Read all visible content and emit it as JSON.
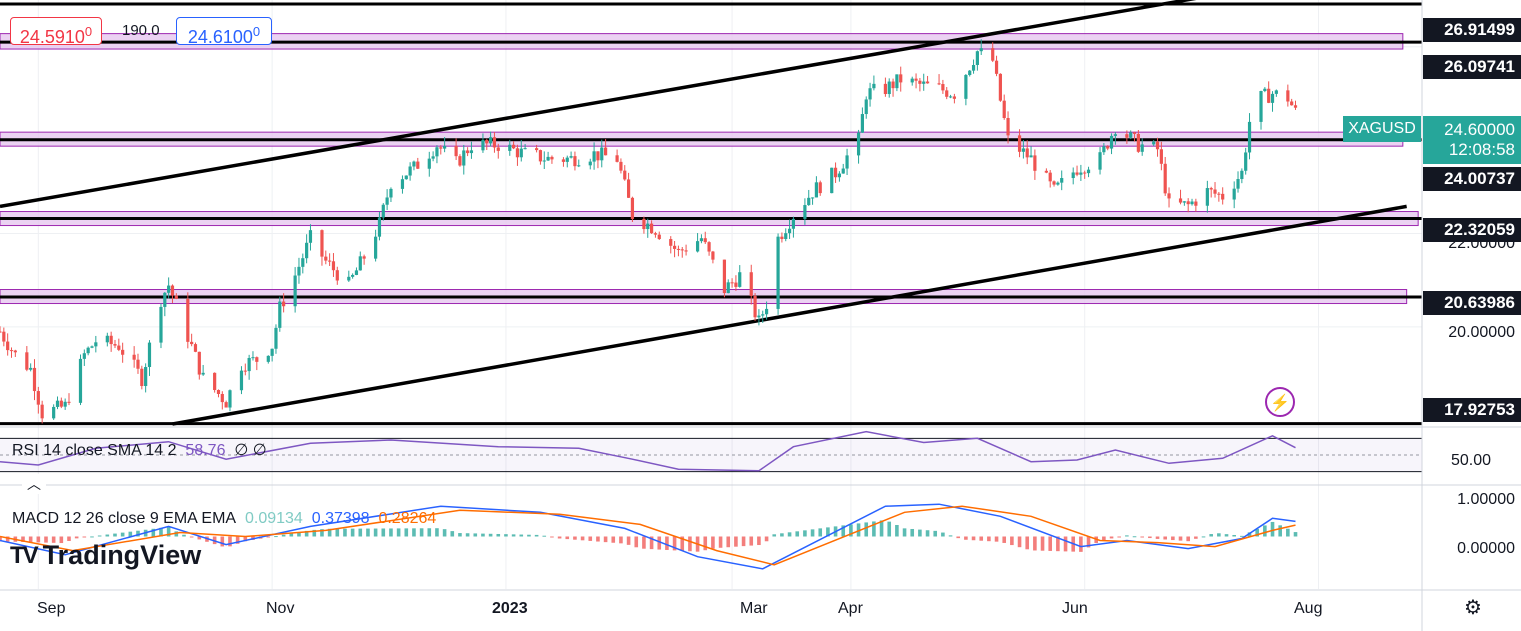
{
  "ticket": {
    "bid": "24.5910",
    "bid_sup": "0",
    "spread": "190.0",
    "ask": "24.6100",
    "ask_sup": "0"
  },
  "symbol": "XAGUSD",
  "current_price": "24.60000",
  "countdown": "12:08:58",
  "brand": {
    "name": "TradingView",
    "mark": "TV"
  },
  "icons": {
    "settings": "gear-icon",
    "alert": "lightning-icon",
    "collapse": "chevron-up-icon"
  },
  "colors": {
    "up": "#26a69a",
    "down": "#ef5350",
    "zone": "#e6c7ef",
    "rsi": "#7e57c2",
    "macd": "#2962ff",
    "signal": "#ff6d00"
  },
  "rsi": {
    "label": "RSI 14 close SMA 14 2",
    "value": "58.76",
    "extra": "∅ ∅",
    "level": "50.00"
  },
  "macd": {
    "label": "MACD 12 26 close 9 EMA EMA",
    "hist": "0.09134",
    "macd": "0.37398",
    "signal": "0.28264",
    "tick_top": "1.00000",
    "tick_zero": "0.00000"
  },
  "axis": {
    "time_labels": [
      "Sep",
      "Nov",
      "2023",
      "Mar",
      "Apr",
      "Jun",
      "Aug"
    ],
    "price_ticks": [
      "22.00000",
      "20.00000"
    ],
    "level_tags": [
      "26.91499",
      "26.09741",
      "24.00737",
      "22.32059",
      "20.63986",
      "17.92753"
    ]
  },
  "chart_data": {
    "type": "candlestick",
    "symbol": "XAGUSD",
    "x_range": [
      "2022-08-22",
      "2023-08-28"
    ],
    "y_range": [
      17.92,
      27.0
    ],
    "horizontal_levels": [
      26.91499,
      26.09741,
      24.00737,
      22.32059,
      20.63986,
      17.92753
    ],
    "zones": [
      {
        "level": 26.09741,
        "low": 25.95,
        "high": 26.28
      },
      {
        "level": 24.00737,
        "low": 23.87,
        "high": 24.17
      },
      {
        "level": 22.32059,
        "low": 22.17,
        "high": 22.47
      },
      {
        "level": 20.63986,
        "low": 20.5,
        "high": 20.8
      }
    ],
    "channel": [
      {
        "x": [
          "2022-08-22",
          "2023-07-01"
        ],
        "y": [
          22.58,
          27.05
        ]
      },
      {
        "x": [
          "2022-10-06",
          "2023-08-24"
        ],
        "y": [
          17.92,
          22.58
        ]
      }
    ],
    "close_path": [
      {
        "x": "2022-08-22",
        "y": 19.9
      },
      {
        "x": "2022-08-26",
        "y": 19.4
      },
      {
        "x": "2022-08-30",
        "y": 19.1
      },
      {
        "x": "2022-09-02",
        "y": 18.15
      },
      {
        "x": "2022-09-08",
        "y": 18.3
      },
      {
        "x": "2022-09-13",
        "y": 19.4
      },
      {
        "x": "2022-09-16",
        "y": 19.7
      },
      {
        "x": "2022-09-22",
        "y": 19.6
      },
      {
        "x": "2022-09-28",
        "y": 18.9
      },
      {
        "x": "2022-10-03",
        "y": 20.6
      },
      {
        "x": "2022-10-05",
        "y": 20.9
      },
      {
        "x": "2022-10-10",
        "y": 19.8
      },
      {
        "x": "2022-10-14",
        "y": 18.9
      },
      {
        "x": "2022-10-20",
        "y": 18.4
      },
      {
        "x": "2022-10-24",
        "y": 19.2
      },
      {
        "x": "2022-10-28",
        "y": 19.3
      },
      {
        "x": "2022-11-01",
        "y": 19.6
      },
      {
        "x": "2022-11-03",
        "y": 20.4
      },
      {
        "x": "2022-11-07",
        "y": 21.1
      },
      {
        "x": "2022-11-11",
        "y": 21.9
      },
      {
        "x": "2022-11-15",
        "y": 21.4
      },
      {
        "x": "2022-11-21",
        "y": 20.9
      },
      {
        "x": "2022-11-25",
        "y": 21.5
      },
      {
        "x": "2022-11-29",
        "y": 22.2
      },
      {
        "x": "2022-12-02",
        "y": 23.1
      },
      {
        "x": "2022-12-08",
        "y": 23.4
      },
      {
        "x": "2022-12-14",
        "y": 23.9
      },
      {
        "x": "2022-12-19",
        "y": 23.5
      },
      {
        "x": "2022-12-23",
        "y": 23.9
      },
      {
        "x": "2022-12-30",
        "y": 23.9
      },
      {
        "x": "2023-01-06",
        "y": 23.7
      },
      {
        "x": "2023-01-12",
        "y": 23.6
      },
      {
        "x": "2023-01-18",
        "y": 23.6
      },
      {
        "x": "2023-01-24",
        "y": 23.7
      },
      {
        "x": "2023-01-30",
        "y": 23.6
      },
      {
        "x": "2023-02-03",
        "y": 22.4
      },
      {
        "x": "2023-02-09",
        "y": 22.1
      },
      {
        "x": "2023-02-15",
        "y": 21.6
      },
      {
        "x": "2023-02-21",
        "y": 21.9
      },
      {
        "x": "2023-02-27",
        "y": 20.8
      },
      {
        "x": "2023-03-03",
        "y": 21.1
      },
      {
        "x": "2023-03-08",
        "y": 20.1
      },
      {
        "x": "2023-03-10",
        "y": 20.5
      },
      {
        "x": "2023-03-13",
        "y": 21.9
      },
      {
        "x": "2023-03-17",
        "y": 22.4
      },
      {
        "x": "2023-03-22",
        "y": 22.9
      },
      {
        "x": "2023-03-28",
        "y": 23.3
      },
      {
        "x": "2023-04-03",
        "y": 24.0
      },
      {
        "x": "2023-04-05",
        "y": 25.0
      },
      {
        "x": "2023-04-10",
        "y": 25.1
      },
      {
        "x": "2023-04-14",
        "y": 25.3
      },
      {
        "x": "2023-04-18",
        "y": 25.2
      },
      {
        "x": "2023-04-24",
        "y": 25.1
      },
      {
        "x": "2023-04-28",
        "y": 25.0
      },
      {
        "x": "2023-05-04",
        "y": 25.9
      },
      {
        "x": "2023-05-08",
        "y": 25.7
      },
      {
        "x": "2023-05-12",
        "y": 24.0
      },
      {
        "x": "2023-05-18",
        "y": 23.6
      },
      {
        "x": "2023-05-24",
        "y": 22.9
      },
      {
        "x": "2023-05-30",
        "y": 23.4
      },
      {
        "x": "2023-06-05",
        "y": 23.6
      },
      {
        "x": "2023-06-09",
        "y": 24.3
      },
      {
        "x": "2023-06-15",
        "y": 23.9
      },
      {
        "x": "2023-06-20",
        "y": 23.8
      },
      {
        "x": "2023-06-23",
        "y": 22.6
      },
      {
        "x": "2023-06-28",
        "y": 22.6
      },
      {
        "x": "2023-07-03",
        "y": 22.9
      },
      {
        "x": "2023-07-07",
        "y": 22.8
      },
      {
        "x": "2023-07-12",
        "y": 23.3
      },
      {
        "x": "2023-07-14",
        "y": 24.4
      },
      {
        "x": "2023-07-17",
        "y": 24.9
      },
      {
        "x": "2023-07-20",
        "y": 25.0
      },
      {
        "x": "2023-07-24",
        "y": 24.9
      },
      {
        "x": "2023-07-26",
        "y": 24.6
      }
    ],
    "rsi_path": [
      {
        "x": "2022-08-22",
        "y": 42
      },
      {
        "x": "2022-09-01",
        "y": 38
      },
      {
        "x": "2022-09-16",
        "y": 58
      },
      {
        "x": "2022-10-05",
        "y": 66
      },
      {
        "x": "2022-10-20",
        "y": 45
      },
      {
        "x": "2022-11-11",
        "y": 64
      },
      {
        "x": "2022-12-02",
        "y": 68
      },
      {
        "x": "2022-12-30",
        "y": 60
      },
      {
        "x": "2023-01-20",
        "y": 58
      },
      {
        "x": "2023-02-03",
        "y": 45
      },
      {
        "x": "2023-02-15",
        "y": 33
      },
      {
        "x": "2023-03-08",
        "y": 31
      },
      {
        "x": "2023-03-17",
        "y": 60
      },
      {
        "x": "2023-04-05",
        "y": 78
      },
      {
        "x": "2023-04-20",
        "y": 65
      },
      {
        "x": "2023-05-04",
        "y": 70
      },
      {
        "x": "2023-05-18",
        "y": 42
      },
      {
        "x": "2023-05-30",
        "y": 44
      },
      {
        "x": "2023-06-09",
        "y": 56
      },
      {
        "x": "2023-06-23",
        "y": 40
      },
      {
        "x": "2023-07-07",
        "y": 46
      },
      {
        "x": "2023-07-20",
        "y": 73
      },
      {
        "x": "2023-07-26",
        "y": 58.76
      }
    ],
    "rsi_range": [
      20,
      80
    ],
    "macd_path": [
      {
        "x": "2022-08-22",
        "y": -0.1
      },
      {
        "x": "2022-09-08",
        "y": -0.45
      },
      {
        "x": "2022-10-05",
        "y": 0.25
      },
      {
        "x": "2022-10-20",
        "y": -0.2
      },
      {
        "x": "2022-11-11",
        "y": 0.25
      },
      {
        "x": "2022-12-15",
        "y": 0.75
      },
      {
        "x": "2023-01-10",
        "y": 0.6
      },
      {
        "x": "2023-02-01",
        "y": 0.2
      },
      {
        "x": "2023-02-20",
        "y": -0.5
      },
      {
        "x": "2023-03-09",
        "y": -0.8
      },
      {
        "x": "2023-04-10",
        "y": 0.75
      },
      {
        "x": "2023-04-24",
        "y": 0.8
      },
      {
        "x": "2023-05-10",
        "y": 0.5
      },
      {
        "x": "2023-05-31",
        "y": -0.25
      },
      {
        "x": "2023-06-12",
        "y": -0.1
      },
      {
        "x": "2023-06-28",
        "y": -0.3
      },
      {
        "x": "2023-07-12",
        "y": -0.05
      },
      {
        "x": "2023-07-20",
        "y": 0.45
      },
      {
        "x": "2023-07-26",
        "y": 0.37398
      }
    ],
    "signal_path": [
      {
        "x": "2022-08-22",
        "y": 0.0
      },
      {
        "x": "2022-09-10",
        "y": -0.35
      },
      {
        "x": "2022-10-08",
        "y": 0.1
      },
      {
        "x": "2022-10-25",
        "y": 0.0
      },
      {
        "x": "2022-11-15",
        "y": 0.15
      },
      {
        "x": "2022-12-20",
        "y": 0.65
      },
      {
        "x": "2023-01-15",
        "y": 0.55
      },
      {
        "x": "2023-02-05",
        "y": 0.3
      },
      {
        "x": "2023-02-25",
        "y": -0.35
      },
      {
        "x": "2023-03-12",
        "y": -0.7
      },
      {
        "x": "2023-04-15",
        "y": 0.6
      },
      {
        "x": "2023-04-30",
        "y": 0.75
      },
      {
        "x": "2023-05-18",
        "y": 0.5
      },
      {
        "x": "2023-06-05",
        "y": -0.1
      },
      {
        "x": "2023-06-20",
        "y": -0.15
      },
      {
        "x": "2023-07-05",
        "y": -0.25
      },
      {
        "x": "2023-07-20",
        "y": 0.15
      },
      {
        "x": "2023-07-26",
        "y": 0.28264
      }
    ],
    "macd_range": [
      -1.2,
      1.2
    ]
  }
}
